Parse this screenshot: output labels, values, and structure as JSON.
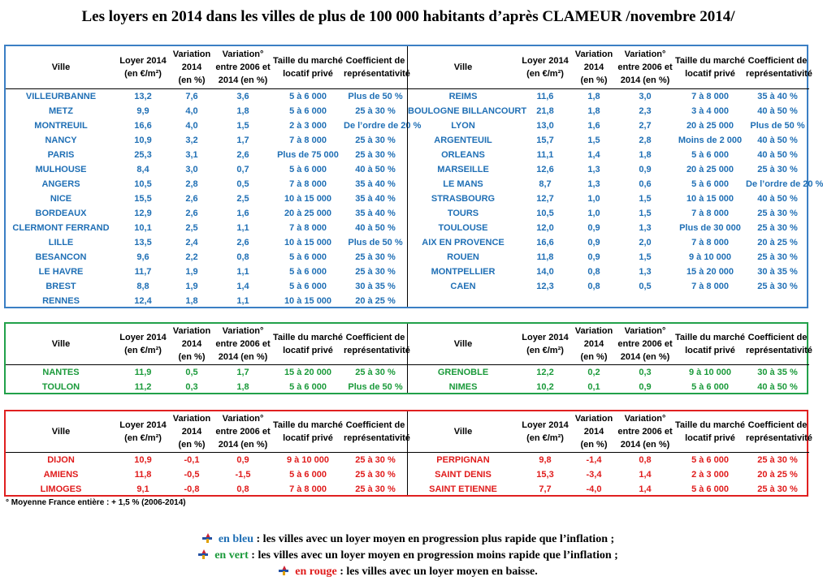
{
  "title": "Les loyers en 2014 dans les villes de plus de 100 000 habitants d’après CLAMEUR /novembre 2014/",
  "headers": {
    "ville": "Ville",
    "loyer": [
      "Loyer 2014",
      "(en €/m²)"
    ],
    "variation": [
      "Variation",
      "2014",
      "(en %)"
    ],
    "variation_0614": [
      "Variation°",
      "entre 2006 et",
      "2014 (en %)"
    ],
    "taille": [
      "Taille du marché",
      "locatif privé"
    ],
    "coef": [
      "Coefficient de",
      "représentativité"
    ]
  },
  "blue_left": [
    [
      "VILLEURBANNE",
      "13,2",
      "7,6",
      "3,6",
      "5 à 6 000",
      "Plus de 50 %"
    ],
    [
      "METZ",
      "9,9",
      "4,0",
      "1,8",
      "5 à 6 000",
      "25 à 30 %"
    ],
    [
      "MONTREUIL",
      "16,6",
      "4,0",
      "1,5",
      "2 à 3 000",
      "De l’ordre de 20 %"
    ],
    [
      "NANCY",
      "10,9",
      "3,2",
      "1,7",
      "7 à 8 000",
      "25 à 30 %"
    ],
    [
      "PARIS",
      "25,3",
      "3,1",
      "2,6",
      "Plus de 75 000",
      "25 à 30 %"
    ],
    [
      "MULHOUSE",
      "8,4",
      "3,0",
      "0,7",
      "5 à 6 000",
      "40 à 50 %"
    ],
    [
      "ANGERS",
      "10,5",
      "2,8",
      "0,5",
      "7 à 8 000",
      "35 à 40 %"
    ],
    [
      "NICE",
      "15,5",
      "2,6",
      "2,5",
      "10 à 15 000",
      "35 à 40 %"
    ],
    [
      "BORDEAUX",
      "12,9",
      "2,6",
      "1,6",
      "20 à 25 000",
      "35 à 40 %"
    ],
    [
      "CLERMONT FERRAND",
      "10,1",
      "2,5",
      "1,1",
      "7 à 8 000",
      "40 à 50 %"
    ],
    [
      "LILLE",
      "13,5",
      "2,4",
      "2,6",
      "10 à 15 000",
      "Plus de 50 %"
    ],
    [
      "BESANCON",
      "9,6",
      "2,2",
      "0,8",
      "5 à 6 000",
      "25 à 30 %"
    ],
    [
      "LE HAVRE",
      "11,7",
      "1,9",
      "1,1",
      "5 à 6 000",
      "25 à 30 %"
    ],
    [
      "BREST",
      "8,8",
      "1,9",
      "1,4",
      "5 à 6 000",
      "30 à 35 %"
    ],
    [
      "RENNES",
      "12,4",
      "1,8",
      "1,1",
      "10 à 15 000",
      "20 à 25 %"
    ]
  ],
  "blue_right": [
    [
      "REIMS",
      "11,6",
      "1,8",
      "3,0",
      "7 à 8 000",
      "35 à 40 %"
    ],
    [
      "BOULOGNE BILLANCOURT",
      "21,8",
      "1,8",
      "2,3",
      "3 à 4 000",
      "40 à 50 %"
    ],
    [
      "LYON",
      "13,0",
      "1,6",
      "2,7",
      "20 à 25 000",
      "Plus de 50 %"
    ],
    [
      "ARGENTEUIL",
      "15,7",
      "1,5",
      "2,8",
      "Moins de 2 000",
      "40 à 50 %"
    ],
    [
      "ORLEANS",
      "11,1",
      "1,4",
      "1,8",
      "5 à 6 000",
      "40 à 50 %"
    ],
    [
      "MARSEILLE",
      "12,6",
      "1,3",
      "0,9",
      "20 à 25 000",
      "25 à 30 %"
    ],
    [
      "LE MANS",
      "8,7",
      "1,3",
      "0,6",
      "5 à 6 000",
      "De l’ordre de 20 %"
    ],
    [
      "STRASBOURG",
      "12,7",
      "1,0",
      "1,5",
      "10 à 15 000",
      "40 à 50 %"
    ],
    [
      "TOURS",
      "10,5",
      "1,0",
      "1,5",
      "7 à 8 000",
      "25 à 30 %"
    ],
    [
      "TOULOUSE",
      "12,0",
      "0,9",
      "1,3",
      "Plus de 30 000",
      "25 à 30 %"
    ],
    [
      "AIX EN PROVENCE",
      "16,6",
      "0,9",
      "2,0",
      "7 à 8 000",
      "20 à 25 %"
    ],
    [
      "ROUEN",
      "11,8",
      "0,9",
      "1,5",
      "9 à 10 000",
      "25 à 30 %"
    ],
    [
      "MONTPELLIER",
      "14,0",
      "0,8",
      "1,3",
      "15 à 20 000",
      "30 à 35 %"
    ],
    [
      "CAEN",
      "12,3",
      "0,8",
      "0,5",
      "7 à 8 000",
      "25 à 30 %"
    ]
  ],
  "green_left": [
    [
      "NANTES",
      "11,9",
      "0,5",
      "1,7",
      "15 à 20 000",
      "25 à 30 %"
    ],
    [
      "TOULON",
      "11,2",
      "0,3",
      "1,8",
      "5 à 6 000",
      "Plus de 50 %"
    ]
  ],
  "green_right": [
    [
      "GRENOBLE",
      "12,2",
      "0,2",
      "0,3",
      "9 à 10 000",
      "30 à 35 %"
    ],
    [
      "NIMES",
      "10,2",
      "0,1",
      "0,9",
      "5 à 6 000",
      "40 à 50 %"
    ]
  ],
  "red_left": [
    [
      "DIJON",
      "10,9",
      "-0,1",
      "0,9",
      "9 à 10 000",
      "25 à 30 %"
    ],
    [
      "AMIENS",
      "11,8",
      "-0,5",
      "-1,5",
      "5 à 6 000",
      "25 à 30 %"
    ],
    [
      "LIMOGES",
      "9,1",
      "-0,8",
      "0,8",
      "7 à 8 000",
      "25 à 30 %"
    ]
  ],
  "red_right": [
    [
      "PERPIGNAN",
      "9,8",
      "-1,4",
      "0,8",
      "5 à 6 000",
      "25 à 30 %"
    ],
    [
      "SAINT DENIS",
      "15,3",
      "-3,4",
      "1,4",
      "2 à 3 000",
      "20 à 25 %"
    ],
    [
      "SAINT ETIENNE",
      "7,7",
      "-4,0",
      "1,4",
      "5 à 6 000",
      "25 à 30 %"
    ]
  ],
  "footnote": "° Moyenne France entière :  + 1,5 % (2006-2014)",
  "legend": [
    {
      "kw": "en bleu",
      "text": " : les villes avec un loyer moyen en progression plus rapide que l’inflation ;"
    },
    {
      "kw": "en vert",
      "text": " : les villes avec un loyer moyen en progression moins rapide que l’inflation ;"
    },
    {
      "kw": "en rouge",
      "text": " : les villes avec un loyer moyen en baisse."
    }
  ],
  "colors": {
    "blue": "#1f6fb5",
    "green": "#1a9a3a",
    "red": "#e01b1b"
  }
}
